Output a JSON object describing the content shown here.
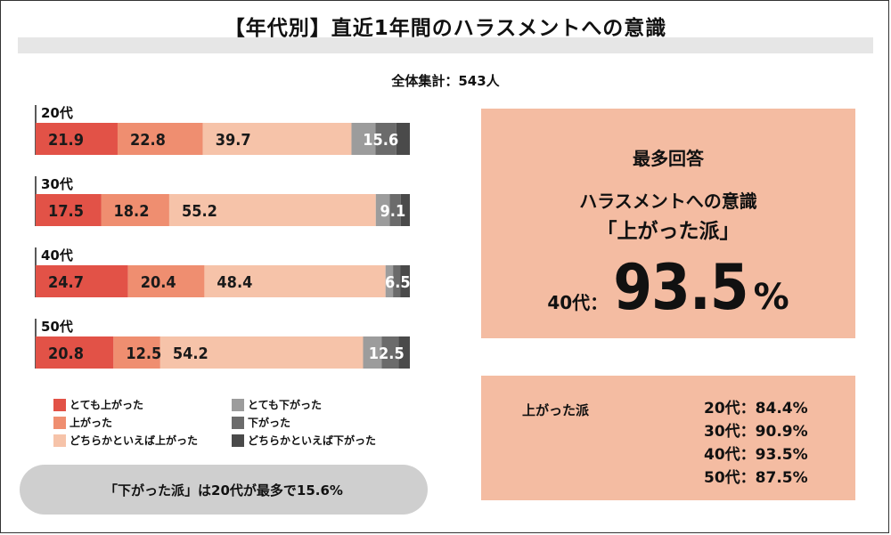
{
  "title": "【年代別】直近1年間のハラスメントへの意識",
  "subtitle": "全体集計：543人",
  "colors": {
    "very_up": "#e25247",
    "up": "#ef8e70",
    "slightly_up": "#f6c3a9",
    "very_down": "#9c9c9c",
    "down": "#6b6b6b",
    "slightly_down": "#4a4a4a",
    "box": "#f4bca2",
    "callout": "#cfcfcf"
  },
  "legend": [
    {
      "label": "とても上がった",
      "color_key": "very_up"
    },
    {
      "label": "上がった",
      "color_key": "up"
    },
    {
      "label": "どちらかといえば上がった",
      "color_key": "slightly_up"
    },
    {
      "label": "とても下がった",
      "color_key": "very_down"
    },
    {
      "label": "下がった",
      "color_key": "down"
    },
    {
      "label": "どちらかといえば下がった",
      "color_key": "slightly_down"
    }
  ],
  "callout": "「下がった派」は20代が最多で15.6%",
  "top_box": {
    "heading": "最多回答",
    "line1": "ハラスメントへの意識",
    "line2": "「上がった派」",
    "age": "40代：",
    "value": "93.5",
    "unit": "%"
  },
  "summary_box": {
    "title": "上がった派",
    "rows": [
      "20代：84.4%",
      "30代：90.9%",
      "40代：93.5%",
      "50代：87.5%"
    ]
  },
  "chart_data": {
    "type": "bar",
    "orientation": "horizontal-stacked",
    "categories": [
      "20代",
      "30代",
      "40代",
      "50代"
    ],
    "series": [
      {
        "name": "とても上がった",
        "values": [
          21.9,
          17.5,
          24.7,
          20.8
        ]
      },
      {
        "name": "上がった",
        "values": [
          22.8,
          18.2,
          20.4,
          12.5
        ]
      },
      {
        "name": "どちらかといえば上がった",
        "values": [
          39.7,
          55.2,
          48.4,
          54.2
        ]
      },
      {
        "name": "とても下がった",
        "values": [
          6.4,
          3.7,
          2.0,
          5.0
        ]
      },
      {
        "name": "下がった",
        "values": [
          5.6,
          3.0,
          2.0,
          4.5
        ]
      },
      {
        "name": "どちらかといえば下がった",
        "values": [
          3.6,
          2.4,
          2.5,
          3.0
        ]
      }
    ],
    "down_totals": [
      15.6,
      9.1,
      6.5,
      12.5
    ],
    "xlim": [
      0,
      100
    ],
    "legend_position": "bottom"
  }
}
